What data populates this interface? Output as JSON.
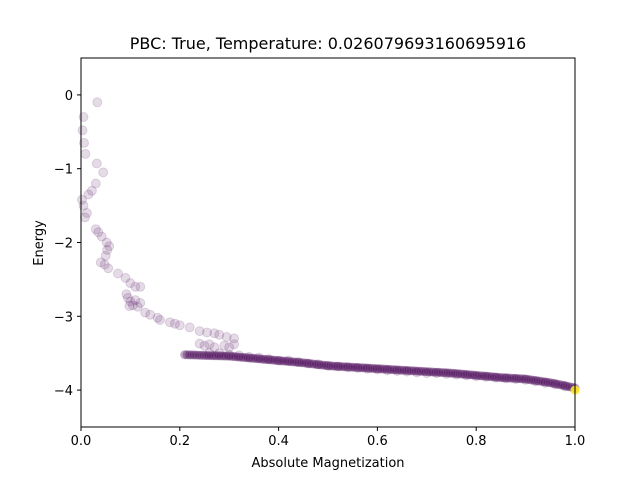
{
  "chart_data": {
    "type": "scatter",
    "title": "PBC: True, Temperature: 0.026079693160695916",
    "xlabel": "Absolute Magnetization",
    "ylabel": "Energy",
    "xlim": [
      0.0,
      1.0
    ],
    "ylim": [
      -4.5,
      0.5
    ],
    "xticks": [
      0.0,
      0.2,
      0.4,
      0.6,
      0.8,
      1.0
    ],
    "xtick_labels": [
      "0.0",
      "0.2",
      "0.4",
      "0.6",
      "0.8",
      "1.0"
    ],
    "yticks": [
      0,
      -1,
      -2,
      -3,
      -4
    ],
    "ytick_labels": [
      "0",
      "−1",
      "−2",
      "−3",
      "−4"
    ],
    "grid": false,
    "colors": {
      "sparse": "#440154",
      "end": "#fde725"
    },
    "points": [
      [
        0.033,
        -0.1
      ],
      [
        0.005,
        -0.3
      ],
      [
        0.003,
        -0.48
      ],
      [
        0.006,
        -0.65
      ],
      [
        0.009,
        -0.8
      ],
      [
        0.032,
        -0.93
      ],
      [
        0.045,
        -1.05
      ],
      [
        0.03,
        -1.2
      ],
      [
        0.022,
        -1.3
      ],
      [
        0.015,
        -1.35
      ],
      [
        0.002,
        -1.42
      ],
      [
        0.005,
        -1.5
      ],
      [
        0.012,
        -1.6
      ],
      [
        0.008,
        -1.66
      ],
      [
        0.03,
        -1.82
      ],
      [
        0.035,
        -1.86
      ],
      [
        0.042,
        -1.92
      ],
      [
        0.052,
        -2.0
      ],
      [
        0.057,
        -2.05
      ],
      [
        0.053,
        -2.1
      ],
      [
        0.05,
        -2.18
      ],
      [
        0.04,
        -2.27
      ],
      [
        0.048,
        -2.3
      ],
      [
        0.055,
        -2.35
      ],
      [
        0.075,
        -2.42
      ],
      [
        0.09,
        -2.48
      ],
      [
        0.1,
        -2.55
      ],
      [
        0.11,
        -2.6
      ],
      [
        0.12,
        -2.6
      ],
      [
        0.092,
        -2.7
      ],
      [
        0.095,
        -2.75
      ],
      [
        0.1,
        -2.8
      ],
      [
        0.11,
        -2.78
      ],
      [
        0.12,
        -2.82
      ],
      [
        0.098,
        -2.86
      ],
      [
        0.105,
        -2.85
      ],
      [
        0.115,
        -2.87
      ],
      [
        0.13,
        -2.95
      ],
      [
        0.14,
        -2.98
      ],
      [
        0.155,
        -3.02
      ],
      [
        0.16,
        -3.05
      ],
      [
        0.18,
        -3.08
      ],
      [
        0.19,
        -3.1
      ],
      [
        0.2,
        -3.12
      ],
      [
        0.22,
        -3.15
      ],
      [
        0.24,
        -3.2
      ],
      [
        0.255,
        -3.22
      ],
      [
        0.27,
        -3.23
      ],
      [
        0.28,
        -3.25
      ],
      [
        0.295,
        -3.28
      ],
      [
        0.31,
        -3.3
      ],
      [
        0.24,
        -3.37
      ],
      [
        0.25,
        -3.4
      ],
      [
        0.26,
        -3.38
      ],
      [
        0.27,
        -3.42
      ],
      [
        0.29,
        -3.4
      ],
      [
        0.3,
        -3.42
      ],
      [
        0.31,
        -3.38
      ],
      [
        0.26,
        -3.5
      ],
      [
        0.28,
        -3.5
      ],
      [
        0.3,
        -3.52
      ],
      [
        0.32,
        -3.53
      ],
      [
        0.34,
        -3.55
      ],
      [
        0.36,
        -3.56
      ],
      [
        0.38,
        -3.58
      ],
      [
        0.4,
        -3.6
      ],
      [
        0.42,
        -3.6
      ],
      [
        0.44,
        -3.62
      ],
      [
        0.46,
        -3.64
      ],
      [
        0.48,
        -3.65
      ],
      [
        0.5,
        -3.67
      ],
      [
        0.52,
        -3.68
      ],
      [
        0.54,
        -3.69
      ],
      [
        0.56,
        -3.7
      ],
      [
        0.58,
        -3.71
      ],
      [
        0.6,
        -3.72
      ],
      [
        0.62,
        -3.73
      ],
      [
        0.64,
        -3.74
      ],
      [
        0.66,
        -3.75
      ],
      [
        0.68,
        -3.76
      ],
      [
        0.7,
        -3.77
      ],
      [
        0.72,
        -3.77
      ],
      [
        0.74,
        -3.78
      ],
      [
        0.76,
        -3.79
      ],
      [
        0.78,
        -3.8
      ],
      [
        0.8,
        -3.81
      ],
      [
        0.82,
        -3.82
      ],
      [
        0.84,
        -3.83
      ],
      [
        0.86,
        -3.84
      ],
      [
        0.88,
        -3.85
      ],
      [
        0.9,
        -3.86
      ],
      [
        0.92,
        -3.88
      ],
      [
        0.94,
        -3.9
      ],
      [
        0.96,
        -3.92
      ],
      [
        0.98,
        -3.95
      ]
    ],
    "band": {
      "x": [
        0.21,
        0.25,
        0.3,
        0.35,
        0.4,
        0.45,
        0.5,
        0.55,
        0.6,
        0.65,
        0.7,
        0.75,
        0.8,
        0.85,
        0.9,
        0.95,
        1.0
      ],
      "y": [
        -3.52,
        -3.53,
        -3.54,
        -3.57,
        -3.6,
        -3.63,
        -3.67,
        -3.69,
        -3.71,
        -3.73,
        -3.75,
        -3.77,
        -3.8,
        -3.83,
        -3.85,
        -3.9,
        -3.97
      ]
    },
    "end_point": [
      1.0,
      -4.0
    ]
  }
}
